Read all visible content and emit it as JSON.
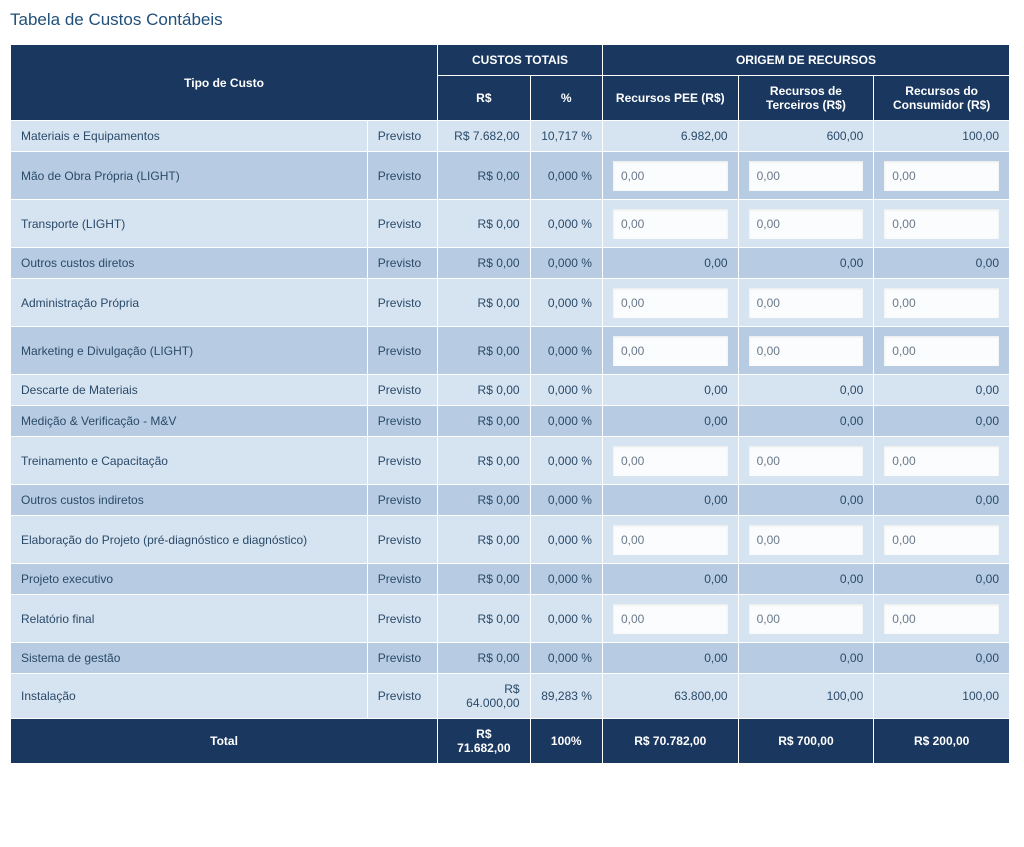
{
  "title": "Tabela de Custos Contábeis",
  "headers": {
    "tipo": "Tipo de Custo",
    "custos_totais": "CUSTOS TOTAIS",
    "origem": "ORIGEM DE RECURSOS",
    "rs": "R$",
    "pct": "%",
    "rec_pee": "Recursos PEE (R$)",
    "rec_terceiros": "Recursos de Terceiros (R$)",
    "rec_consumidor": "Recursos do Consumidor (R$)"
  },
  "status_label": "Previsto",
  "input_placeholder": "0,00",
  "rows": [
    {
      "name": "Materiais e Equipamentos",
      "rs": "R$ 7.682,00",
      "pct": "10,717 %",
      "pee": "6.982,00",
      "ter": "600,00",
      "con": "100,00",
      "editable": false,
      "stripe": "light"
    },
    {
      "name": "Mão de Obra Própria (LIGHT)",
      "rs": "R$ 0,00",
      "pct": "0,000 %",
      "pee": "0,00",
      "ter": "0,00",
      "con": "0,00",
      "editable": true,
      "stripe": "dark"
    },
    {
      "name": "Transporte (LIGHT)",
      "rs": "R$ 0,00",
      "pct": "0,000 %",
      "pee": "0,00",
      "ter": "0,00",
      "con": "0,00",
      "editable": true,
      "stripe": "light"
    },
    {
      "name": "Outros custos diretos",
      "rs": "R$ 0,00",
      "pct": "0,000 %",
      "pee": "0,00",
      "ter": "0,00",
      "con": "0,00",
      "editable": false,
      "stripe": "dark"
    },
    {
      "name": "Administração Própria",
      "rs": "R$ 0,00",
      "pct": "0,000 %",
      "pee": "0,00",
      "ter": "0,00",
      "con": "0,00",
      "editable": true,
      "stripe": "light"
    },
    {
      "name": "Marketing e Divulgação (LIGHT)",
      "rs": "R$ 0,00",
      "pct": "0,000 %",
      "pee": "0,00",
      "ter": "0,00",
      "con": "0,00",
      "editable": true,
      "stripe": "dark"
    },
    {
      "name": "Descarte de Materiais",
      "rs": "R$ 0,00",
      "pct": "0,000 %",
      "pee": "0,00",
      "ter": "0,00",
      "con": "0,00",
      "editable": false,
      "stripe": "light"
    },
    {
      "name": "Medição & Verificação - M&V",
      "rs": "R$ 0,00",
      "pct": "0,000 %",
      "pee": "0,00",
      "ter": "0,00",
      "con": "0,00",
      "editable": false,
      "stripe": "dark"
    },
    {
      "name": "Treinamento e Capacitação",
      "rs": "R$ 0,00",
      "pct": "0,000 %",
      "pee": "0,00",
      "ter": "0,00",
      "con": "0,00",
      "editable": true,
      "stripe": "light"
    },
    {
      "name": "Outros custos indiretos",
      "rs": "R$ 0,00",
      "pct": "0,000 %",
      "pee": "0,00",
      "ter": "0,00",
      "con": "0,00",
      "editable": false,
      "stripe": "dark"
    },
    {
      "name": "Elaboração do Projeto (pré-diagnóstico e diagnóstico)",
      "rs": "R$ 0,00",
      "pct": "0,000 %",
      "pee": "0,00",
      "ter": "0,00",
      "con": "0,00",
      "editable": true,
      "stripe": "light"
    },
    {
      "name": "Projeto executivo",
      "rs": "R$ 0,00",
      "pct": "0,000 %",
      "pee": "0,00",
      "ter": "0,00",
      "con": "0,00",
      "editable": false,
      "stripe": "dark"
    },
    {
      "name": "Relatório final",
      "rs": "R$ 0,00",
      "pct": "0,000 %",
      "pee": "0,00",
      "ter": "0,00",
      "con": "0,00",
      "editable": true,
      "stripe": "light"
    },
    {
      "name": "Sistema de gestão",
      "rs": "R$ 0,00",
      "pct": "0,000 %",
      "pee": "0,00",
      "ter": "0,00",
      "con": "0,00",
      "editable": false,
      "stripe": "dark"
    },
    {
      "name": "Instalação",
      "rs": "R$ 64.000,00",
      "pct": "89,283 %",
      "pee": "63.800,00",
      "ter": "100,00",
      "con": "100,00",
      "editable": false,
      "stripe": "light"
    }
  ],
  "total": {
    "label": "Total",
    "rs": "R$ 71.682,00",
    "pct": "100%",
    "pee": "R$ 70.782,00",
    "ter": "R$ 700,00",
    "con": "R$ 200,00"
  },
  "colors": {
    "header_bg": "#19375f",
    "row_light": "#d6e3f1",
    "row_dark": "#b7cce2",
    "text": "#2a4a68",
    "input_bg": "#fbfcfd"
  }
}
